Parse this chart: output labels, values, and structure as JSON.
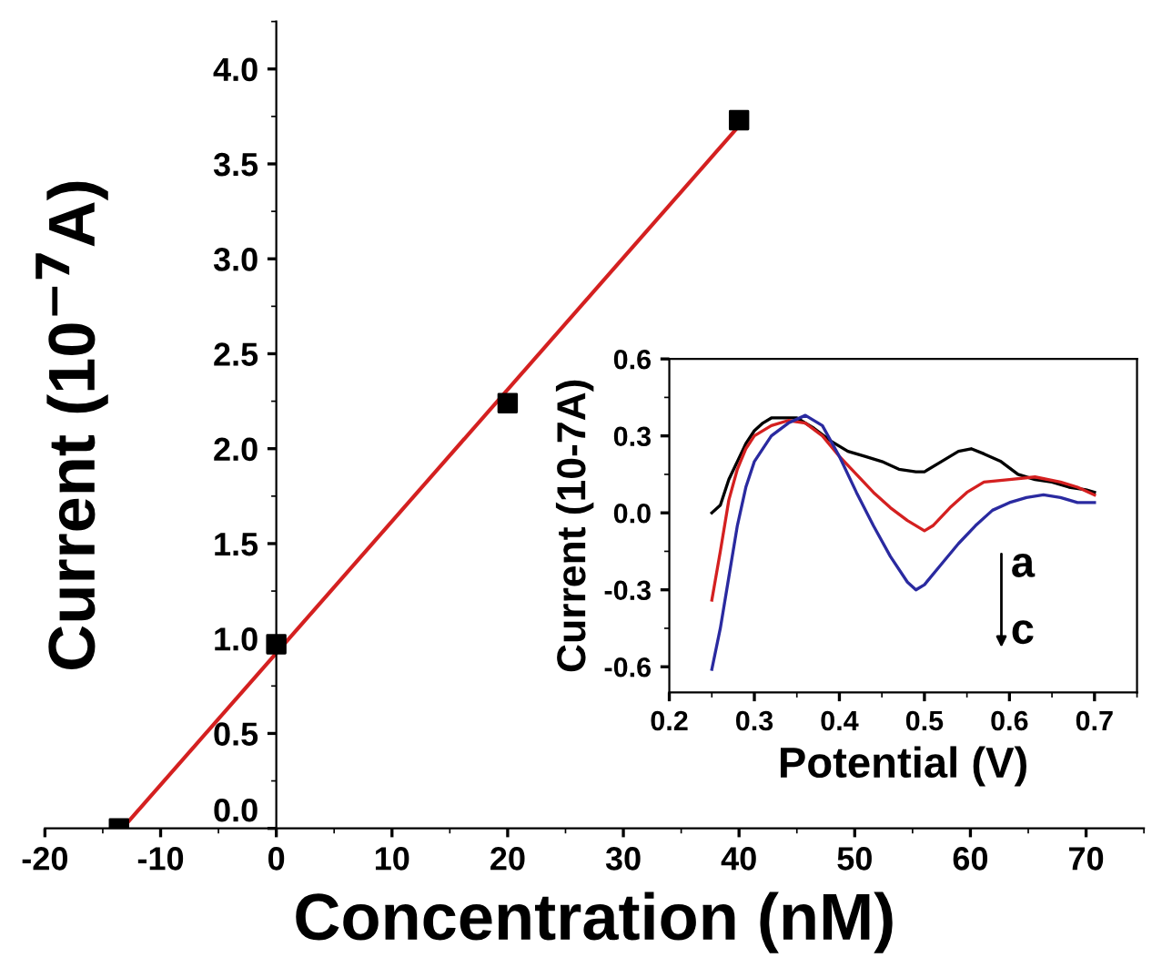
{
  "chart_data": [
    {
      "type": "scatter",
      "xlabel": "Concentration (nM)",
      "ylabel": "Current (10$^{−7}$A)",
      "xlim": [
        -20,
        75
      ],
      "ylim": [
        0,
        4.25
      ],
      "xticks": [
        -20,
        -10,
        0,
        10,
        20,
        30,
        40,
        50,
        60,
        70
      ],
      "yticks": [
        {
          "value": 0,
          "label": "0.0"
        },
        0.5,
        {
          "value": 1,
          "label": "1.0"
        },
        1.5,
        {
          "value": 2,
          "label": "2.0"
        },
        2.5,
        {
          "value": 3,
          "label": "3.0"
        },
        3.5,
        {
          "value": 4,
          "label": "4.0"
        }
      ],
      "grid": false,
      "legend": false,
      "series": [
        {
          "type": "scatter",
          "marker": "square",
          "color": "#000000",
          "x": [
            -13.6,
            0,
            20,
            40
          ],
          "values": [
            0,
            0.97,
            2.24,
            3.73
          ]
        },
        {
          "type": "line",
          "marker": "none",
          "color": "#d42020",
          "x": [
            -13.3,
            40
          ],
          "values": [
            0,
            3.7
          ]
        }
      ]
    },
    {
      "type": "line",
      "xlabel": "Potential (V)",
      "ylabel": "Current (10-7A)",
      "xlim": [
        0.2,
        0.75
      ],
      "ylim": [
        -0.7,
        0.6
      ],
      "xticks": [
        0.2,
        0.3,
        0.4,
        0.5,
        0.6,
        0.7
      ],
      "yticks": [
        -0.6,
        -0.3,
        {
          "value": 0,
          "label": "0.0"
        },
        0.3,
        0.6
      ],
      "grid": false,
      "legend": false,
      "marker": "none",
      "line_style": "solid",
      "annotations": [
        "a",
        "c"
      ],
      "series": [
        {
          "color": "#000000",
          "x": [
            0.25,
            0.26,
            0.27,
            0.28,
            0.29,
            0.3,
            0.31,
            0.32,
            0.33,
            0.35,
            0.37,
            0.39,
            0.41,
            0.43,
            0.45,
            0.47,
            0.49,
            0.5,
            0.52,
            0.54,
            0.555,
            0.57,
            0.59,
            0.61,
            0.63,
            0.65,
            0.67,
            0.69,
            0.7
          ],
          "values": [
            0.0,
            0.03,
            0.13,
            0.2,
            0.27,
            0.32,
            0.35,
            0.37,
            0.37,
            0.37,
            0.33,
            0.28,
            0.24,
            0.22,
            0.2,
            0.17,
            0.16,
            0.16,
            0.2,
            0.24,
            0.25,
            0.23,
            0.2,
            0.15,
            0.13,
            0.12,
            0.1,
            0.09,
            0.08
          ]
        },
        {
          "color": "#d42020",
          "x": [
            0.25,
            0.26,
            0.27,
            0.28,
            0.29,
            0.3,
            0.32,
            0.34,
            0.36,
            0.38,
            0.4,
            0.42,
            0.44,
            0.46,
            0.48,
            0.5,
            0.51,
            0.53,
            0.55,
            0.57,
            0.6,
            0.63,
            0.66,
            0.68,
            0.7
          ],
          "values": [
            -0.34,
            -0.15,
            0.05,
            0.17,
            0.25,
            0.3,
            0.34,
            0.36,
            0.35,
            0.3,
            0.22,
            0.15,
            0.08,
            0.02,
            -0.03,
            -0.07,
            -0.05,
            0.02,
            0.08,
            0.12,
            0.13,
            0.14,
            0.12,
            0.1,
            0.07
          ]
        },
        {
          "color": "#2a2aa0",
          "x": [
            0.25,
            0.26,
            0.27,
            0.28,
            0.29,
            0.3,
            0.32,
            0.34,
            0.36,
            0.38,
            0.4,
            0.42,
            0.44,
            0.46,
            0.48,
            0.49,
            0.5,
            0.52,
            0.54,
            0.56,
            0.58,
            0.6,
            0.62,
            0.64,
            0.66,
            0.68,
            0.7
          ],
          "values": [
            -0.61,
            -0.45,
            -0.25,
            -0.05,
            0.1,
            0.2,
            0.3,
            0.35,
            0.38,
            0.34,
            0.22,
            0.08,
            -0.05,
            -0.17,
            -0.27,
            -0.3,
            -0.28,
            -0.2,
            -0.12,
            -0.05,
            0.01,
            0.04,
            0.06,
            0.07,
            0.06,
            0.04,
            0.04
          ]
        }
      ]
    }
  ]
}
